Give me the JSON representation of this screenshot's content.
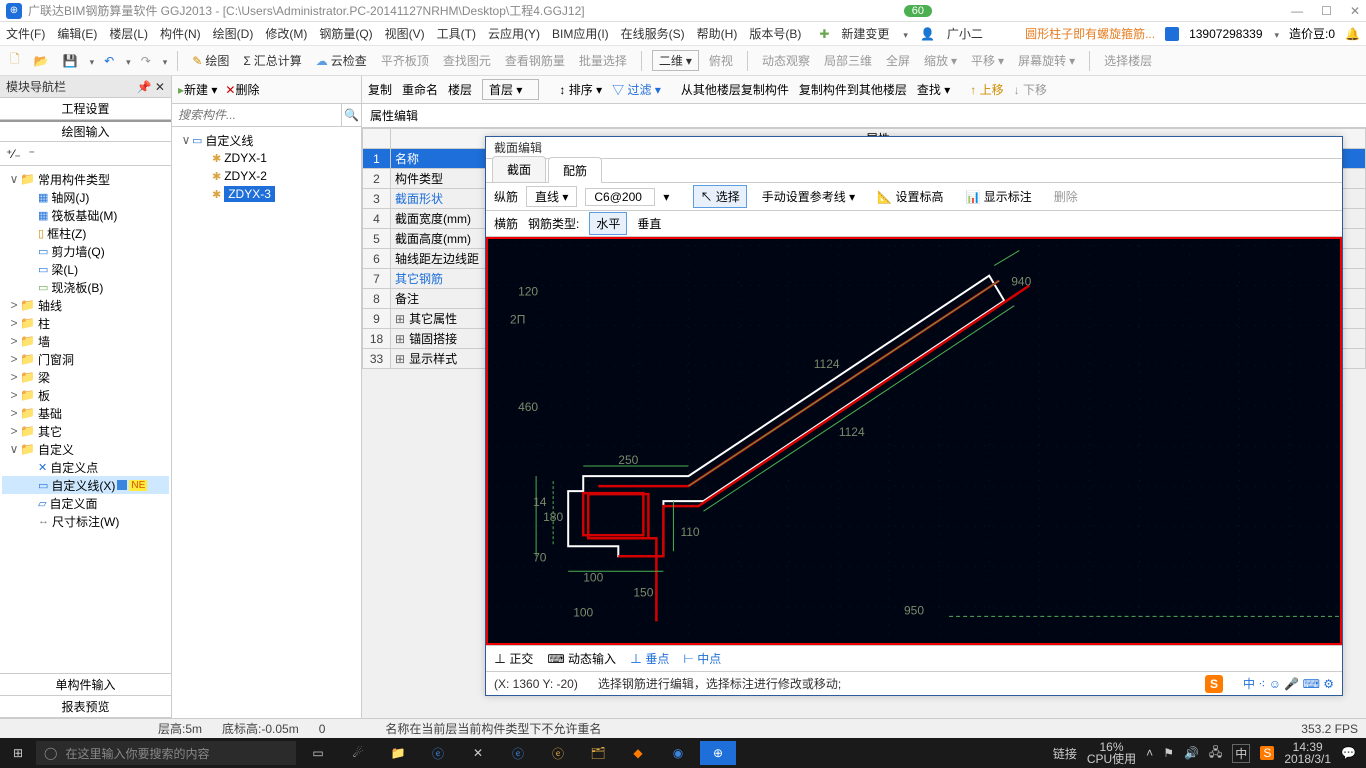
{
  "titlebar": {
    "app_title": "广联达BIM钢筋算量软件 GGJ2013 - [C:\\Users\\Administrator.PC-20141127NRHM\\Desktop\\工程4.GGJ12]",
    "badge": "60"
  },
  "menubar": {
    "items": [
      "文件(F)",
      "编辑(E)",
      "楼层(L)",
      "构件(N)",
      "绘图(D)",
      "修改(M)",
      "钢筋量(Q)",
      "视图(V)",
      "工具(T)",
      "云应用(Y)",
      "BIM应用(I)",
      "在线服务(S)",
      "帮助(H)",
      "版本号(B)"
    ],
    "new_change": "新建变更",
    "user_small": "广小二",
    "tip": "圆形柱子即有螺旋箍筋...",
    "phone": "13907298339",
    "credit_label": "造价豆:0"
  },
  "toolbar1": {
    "items": [
      "绘图",
      "汇总计算",
      "云检查",
      "平齐板顶",
      "查找图元",
      "查看钢筋量",
      "批量选择",
      "二维",
      "俯视",
      "动态观察",
      "局部三维",
      "全屏",
      "缩放",
      "平移",
      "屏幕旋转",
      "选择楼层"
    ]
  },
  "toolbar2": {
    "items": [
      "新建",
      "删除",
      "复制",
      "重命名"
    ],
    "floor_label": "楼层",
    "floor_value": "首层",
    "sort": "排序",
    "filter": "过滤",
    "copy_from": "从其他楼层复制构件",
    "copy_to": "复制构件到其他楼层",
    "find": "查找",
    "up": "上移",
    "down": "下移"
  },
  "left_panel": {
    "header": "模块导航栏",
    "tab1": "工程设置",
    "tab2": "绘图输入",
    "tree": [
      {
        "indent": 0,
        "tw": "∨",
        "icon": "📁",
        "label": "常用构件类型"
      },
      {
        "indent": 1,
        "icon_color": "#1e6fd9",
        "glyph": "▦",
        "label": "轴网(J)"
      },
      {
        "indent": 1,
        "icon_color": "#1e6fd9",
        "glyph": "▦",
        "label": "筏板基础(M)"
      },
      {
        "indent": 1,
        "icon_color": "#d08c00",
        "glyph": "▯",
        "label": "框柱(Z)"
      },
      {
        "indent": 1,
        "icon_color": "#1e6fd9",
        "glyph": "▭",
        "label": "剪力墙(Q)"
      },
      {
        "indent": 1,
        "icon_color": "#1e6fd9",
        "glyph": "▭",
        "label": "梁(L)"
      },
      {
        "indent": 1,
        "icon_color": "#6aa84f",
        "glyph": "▭",
        "label": "现浇板(B)"
      },
      {
        "indent": 0,
        "tw": ">",
        "icon": "📁",
        "label": "轴线"
      },
      {
        "indent": 0,
        "tw": ">",
        "icon": "📁",
        "label": "柱"
      },
      {
        "indent": 0,
        "tw": ">",
        "icon": "📁",
        "label": "墙"
      },
      {
        "indent": 0,
        "tw": ">",
        "icon": "📁",
        "label": "门窗洞"
      },
      {
        "indent": 0,
        "tw": ">",
        "icon": "📁",
        "label": "梁"
      },
      {
        "indent": 0,
        "tw": ">",
        "icon": "📁",
        "label": "板"
      },
      {
        "indent": 0,
        "tw": ">",
        "icon": "📁",
        "label": "基础"
      },
      {
        "indent": 0,
        "tw": ">",
        "icon": "📁",
        "label": "其它"
      },
      {
        "indent": 0,
        "tw": "∨",
        "icon": "📁",
        "label": "自定义"
      },
      {
        "indent": 1,
        "icon_color": "#1e6fd9",
        "glyph": "✕",
        "label": "自定义点"
      },
      {
        "indent": 1,
        "icon_color": "#1e6fd9",
        "glyph": "▭",
        "label": "自定义线(X)",
        "selected": true,
        "has_ne": true
      },
      {
        "indent": 1,
        "icon_color": "#1e6fd9",
        "glyph": "▱",
        "label": "自定义面"
      },
      {
        "indent": 1,
        "icon_color": "#777",
        "glyph": "↔",
        "label": "尺寸标注(W)"
      }
    ],
    "bottom_tab1": "单构件输入",
    "bottom_tab2": "报表预览"
  },
  "mid_panel": {
    "search_placeholder": "搜索构件...",
    "tree": [
      {
        "indent": 0,
        "tw": "∨",
        "glyph": "▭",
        "color": "#1e6fd9",
        "label": "自定义线"
      },
      {
        "indent": 1,
        "glyph": "✱",
        "color": "#d9a441",
        "label": "ZDYX-1"
      },
      {
        "indent": 1,
        "glyph": "✱",
        "color": "#d9a441",
        "label": "ZDYX-2"
      },
      {
        "indent": 1,
        "glyph": "✱",
        "color": "#d9a441",
        "label": "ZDYX-3",
        "selected": true
      }
    ]
  },
  "attr": {
    "header": "属性编辑",
    "col_header": "属性",
    "rows": [
      {
        "num": "1",
        "label": "名称",
        "blue": true,
        "selected": true
      },
      {
        "num": "2",
        "label": "构件类型"
      },
      {
        "num": "3",
        "label": "截面形状",
        "blue": true
      },
      {
        "num": "4",
        "label": "截面宽度(mm)"
      },
      {
        "num": "5",
        "label": "截面高度(mm)"
      },
      {
        "num": "6",
        "label": "轴线距左边线距"
      },
      {
        "num": "7",
        "label": "其它钢筋",
        "blue": true
      },
      {
        "num": "8",
        "label": "备注"
      },
      {
        "num": "9",
        "label": "其它属性",
        "plus": true
      },
      {
        "num": "18",
        "label": "锚固搭接",
        "plus": true
      },
      {
        "num": "33",
        "label": "显示样式",
        "plus": true
      }
    ]
  },
  "editor": {
    "title": "截面编辑",
    "tabs": [
      "截面",
      "配筋"
    ],
    "active_tab": 1,
    "row1": {
      "label": "纵筋",
      "type": "直线",
      "spec": "C6@200",
      "select": "选择",
      "manual": "手动设置参考线",
      "height": "设置标高",
      "show": "显示标注",
      "delete": "删除"
    },
    "row2": {
      "label": "横筋",
      "type_label": "钢筋类型:",
      "h": "水平",
      "v": "垂直"
    },
    "footer": [
      "正交",
      "动态输入",
      "垂点",
      "中点"
    ],
    "coord": "(X: 1360 Y: -20)",
    "hint": "选择钢筋进行编辑，选择标注进行修改或移动;",
    "dims": {
      "d120": "120",
      "d2pi": "2Π",
      "d460": "460",
      "d180": "180",
      "d14": "14",
      "d70": "70",
      "d100a": "100",
      "d100b": "100",
      "d150": "150",
      "d250": "250",
      "d110": "110",
      "d1124a": "1124",
      "d1124b": "1124",
      "d950": "950",
      "d940": "940"
    }
  },
  "status_bar": {
    "layer": "层高:5m",
    "bottom": "底标高:-0.05m",
    "zero": "0",
    "msg": "名称在当前层当前构件类型下不允许重名",
    "fps": "353.2 FPS"
  },
  "taskbar": {
    "search_placeholder": "在这里输入你要搜索的内容",
    "link": "链接",
    "cpu_pct": "16%",
    "cpu_label": "CPU使用",
    "time": "14:39",
    "date": "2018/3/1"
  }
}
